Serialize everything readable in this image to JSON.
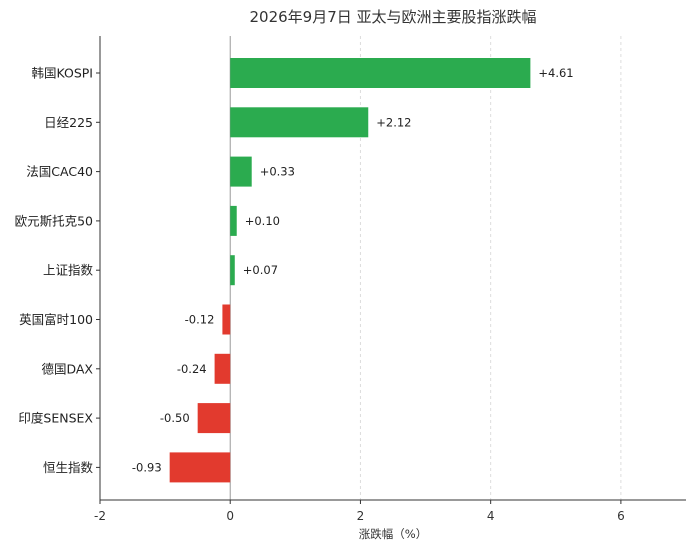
{
  "chart_data": {
    "type": "bar",
    "orientation": "horizontal",
    "title": "2026年9月7日 亚太与欧洲主要股指涨跌幅",
    "xlabel": "涨跌幅（%）",
    "ylabel": "",
    "xlim": [
      -2,
      7
    ],
    "xticks": [
      -2,
      0,
      2,
      4,
      6
    ],
    "grid": "vertical dashed",
    "categories": [
      "韩国KOSPI",
      "日经225",
      "法国CAC40",
      "欧元斯托克50",
      "上证指数",
      "英国富时100",
      "德国DAX",
      "印度SENSEX",
      "恒生指数"
    ],
    "values": [
      4.61,
      2.12,
      0.33,
      0.1,
      0.07,
      -0.12,
      -0.24,
      -0.5,
      -0.93
    ],
    "value_labels": [
      "+4.61",
      "+2.12",
      "+0.33",
      "+0.10",
      "+0.07",
      "-0.12",
      "-0.24",
      "-0.50",
      "-0.93"
    ],
    "colors": {
      "positive": "#2bab4f",
      "negative": "#e23a2e",
      "axis": "#333333",
      "zero_line": "#999999",
      "grid": "#dddddd"
    }
  }
}
